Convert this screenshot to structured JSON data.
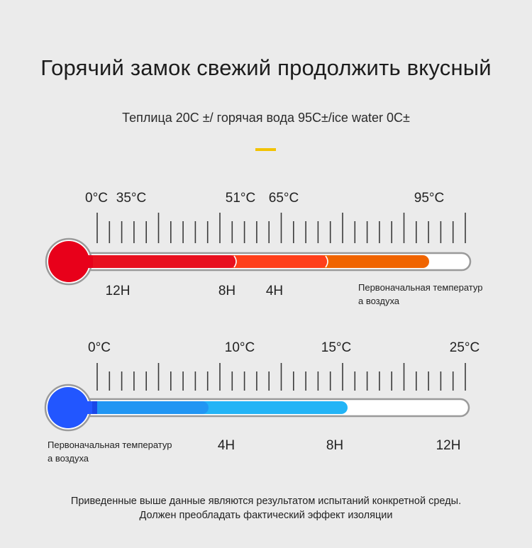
{
  "title": "Горячий замок свежий продолжить вкусный",
  "subtitle": "Теплица 20С ±/ горячая вода 95С±/ice water 0С±",
  "accent_color": "#f2c200",
  "hot_thermometer": {
    "temp_labels": [
      "0°C",
      "35°C",
      "51°C",
      "65°C",
      "95°C"
    ],
    "time_labels": [
      "12H",
      "8H",
      "4H"
    ],
    "note": "Первоначальная температур\nа воздуха",
    "colors": {
      "bulb": "#e8001a",
      "segment_1": "#e8101f",
      "segment_2": "#ff3f1a",
      "segment_3": "#f06400"
    },
    "fill_levels": [
      51,
      65,
      95
    ]
  },
  "cold_thermometer": {
    "temp_labels": [
      "0°C",
      "10°C",
      "15°C",
      "25°C"
    ],
    "time_labels": [
      "4H",
      "8H",
      "12H"
    ],
    "note": "Первоначальная температур\nа воздуха",
    "colors": {
      "bulb": "#2256ff",
      "segment_1": "#1a47e8",
      "segment_2": "#2196f3",
      "segment_3": "#23b4f6"
    },
    "fill_levels": [
      10,
      15
    ]
  },
  "disclaimer": [
    "Приведенные выше данные являются результатом испытаний конкретной среды.",
    "Должен преобладать фактический эффект изоляции"
  ]
}
